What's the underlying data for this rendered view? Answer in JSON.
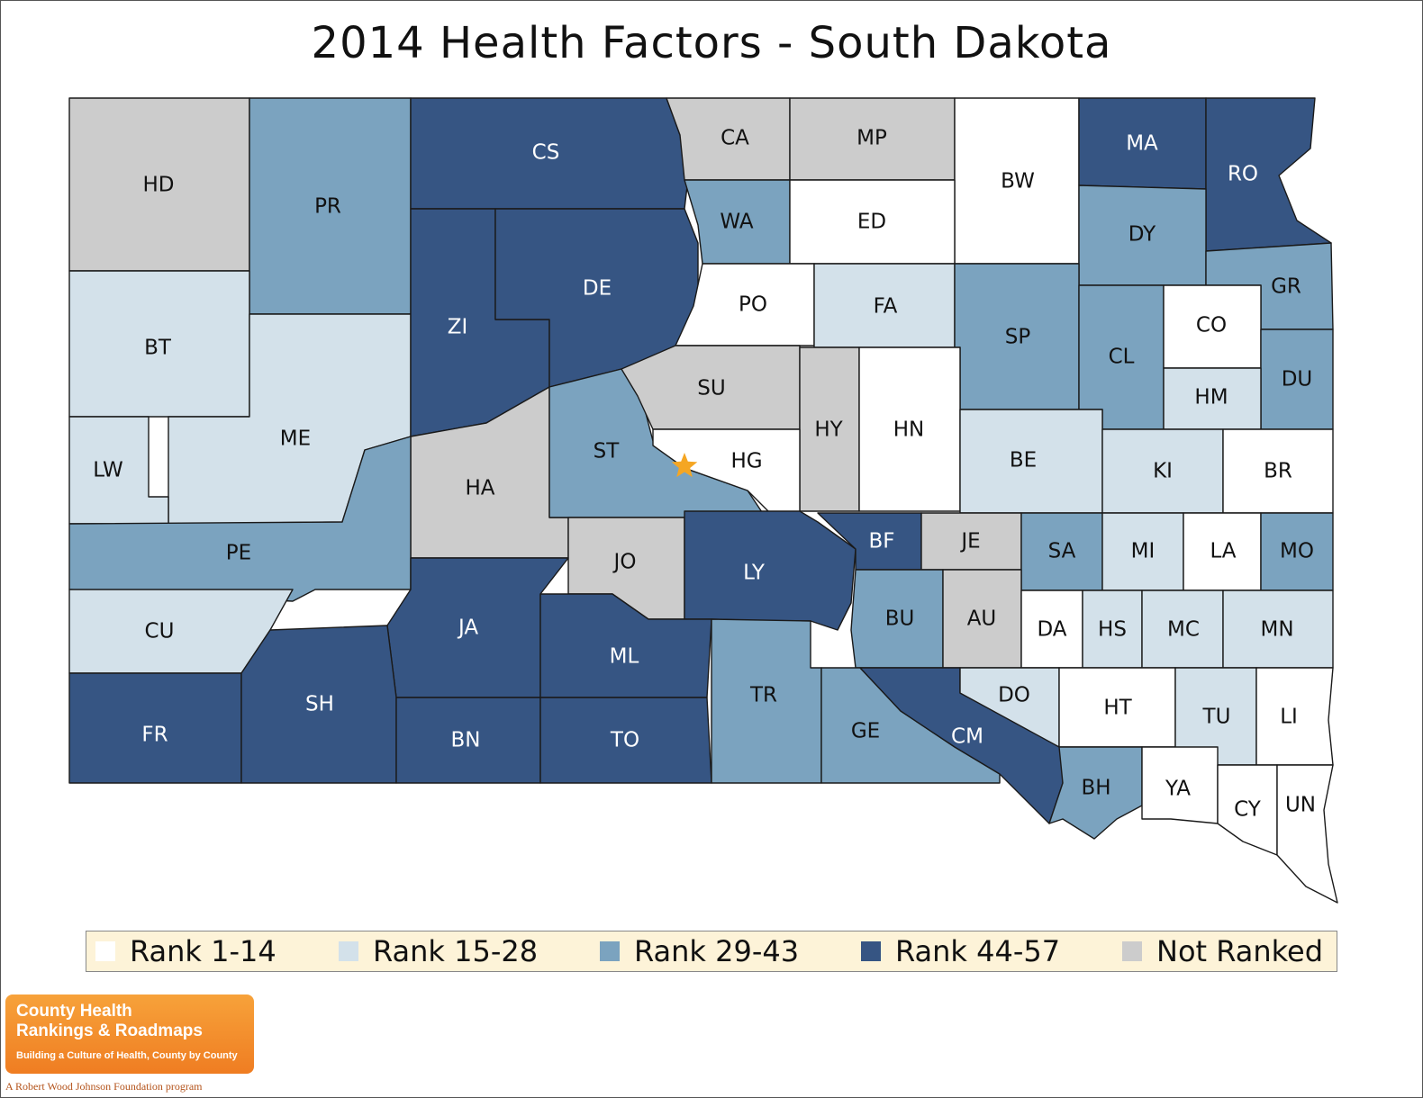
{
  "title": "2014 Health Factors - South Dakota",
  "colors": {
    "rank_1_14": "#ffffff",
    "rank_15_28": "#d3e1ea",
    "rank_29_43": "#7ba3bf",
    "rank_44_57": "#365583",
    "not_ranked": "#cccccc",
    "star": "#f5a623"
  },
  "legend": [
    {
      "label": "Rank 1-14",
      "key": "rank_1_14"
    },
    {
      "label": "Rank 15-28",
      "key": "rank_15_28"
    },
    {
      "label": "Rank 29-43",
      "key": "rank_29_43"
    },
    {
      "label": "Rank 44-57",
      "key": "rank_44_57"
    },
    {
      "label": "Not Ranked",
      "key": "not_ranked"
    }
  ],
  "counties": [
    {
      "code": "HD",
      "category": "not_ranked"
    },
    {
      "code": "PR",
      "category": "rank_29_43"
    },
    {
      "code": "CS",
      "category": "rank_44_57"
    },
    {
      "code": "CA",
      "category": "not_ranked"
    },
    {
      "code": "MP",
      "category": "not_ranked"
    },
    {
      "code": "BW",
      "category": "rank_1_14"
    },
    {
      "code": "MA",
      "category": "rank_44_57"
    },
    {
      "code": "RO",
      "category": "rank_44_57"
    },
    {
      "code": "BT",
      "category": "rank_15_28"
    },
    {
      "code": "ME",
      "category": "rank_15_28"
    },
    {
      "code": "ZI",
      "category": "rank_44_57"
    },
    {
      "code": "DE",
      "category": "rank_44_57"
    },
    {
      "code": "WA",
      "category": "rank_29_43"
    },
    {
      "code": "ED",
      "category": "rank_1_14"
    },
    {
      "code": "DY",
      "category": "rank_29_43"
    },
    {
      "code": "GR",
      "category": "rank_29_43"
    },
    {
      "code": "PO",
      "category": "rank_1_14"
    },
    {
      "code": "FA",
      "category": "rank_15_28"
    },
    {
      "code": "SP",
      "category": "rank_29_43"
    },
    {
      "code": "CL",
      "category": "rank_29_43"
    },
    {
      "code": "CO",
      "category": "rank_1_14"
    },
    {
      "code": "DU",
      "category": "rank_29_43"
    },
    {
      "code": "HM",
      "category": "rank_15_28"
    },
    {
      "code": "LW",
      "category": "rank_15_28"
    },
    {
      "code": "HA",
      "category": "not_ranked"
    },
    {
      "code": "ST",
      "category": "rank_29_43"
    },
    {
      "code": "SU",
      "category": "not_ranked"
    },
    {
      "code": "HY",
      "category": "not_ranked"
    },
    {
      "code": "HN",
      "category": "rank_1_14"
    },
    {
      "code": "HG",
      "category": "rank_1_14"
    },
    {
      "code": "BE",
      "category": "rank_15_28"
    },
    {
      "code": "KI",
      "category": "rank_15_28"
    },
    {
      "code": "BR",
      "category": "rank_1_14"
    },
    {
      "code": "PE",
      "category": "rank_29_43"
    },
    {
      "code": "JO",
      "category": "not_ranked"
    },
    {
      "code": "LY",
      "category": "rank_44_57"
    },
    {
      "code": "BF",
      "category": "rank_44_57"
    },
    {
      "code": "JE",
      "category": "not_ranked"
    },
    {
      "code": "SA",
      "category": "rank_29_43"
    },
    {
      "code": "MI",
      "category": "rank_15_28"
    },
    {
      "code": "LA",
      "category": "rank_1_14"
    },
    {
      "code": "MO",
      "category": "rank_29_43"
    },
    {
      "code": "CU",
      "category": "rank_15_28"
    },
    {
      "code": "JA",
      "category": "rank_44_57"
    },
    {
      "code": "ML",
      "category": "rank_44_57"
    },
    {
      "code": "BU",
      "category": "rank_29_43"
    },
    {
      "code": "AU",
      "category": "not_ranked"
    },
    {
      "code": "DA",
      "category": "rank_1_14"
    },
    {
      "code": "HS",
      "category": "rank_15_28"
    },
    {
      "code": "MC",
      "category": "rank_15_28"
    },
    {
      "code": "MN",
      "category": "rank_15_28"
    },
    {
      "code": "FR",
      "category": "rank_44_57"
    },
    {
      "code": "SH",
      "category": "rank_44_57"
    },
    {
      "code": "BN",
      "category": "rank_44_57"
    },
    {
      "code": "TO",
      "category": "rank_44_57"
    },
    {
      "code": "TR",
      "category": "rank_29_43"
    },
    {
      "code": "GE",
      "category": "rank_29_43"
    },
    {
      "code": "CM",
      "category": "rank_44_57"
    },
    {
      "code": "DO",
      "category": "rank_15_28"
    },
    {
      "code": "HT",
      "category": "rank_1_14"
    },
    {
      "code": "TU",
      "category": "rank_15_28"
    },
    {
      "code": "LI",
      "category": "rank_1_14"
    },
    {
      "code": "BH",
      "category": "rank_29_43"
    },
    {
      "code": "YA",
      "category": "rank_1_14"
    },
    {
      "code": "CY",
      "category": "rank_1_14"
    },
    {
      "code": "UN",
      "category": "rank_1_14"
    }
  ],
  "capital_marker": "star",
  "logo": {
    "line1": "County Health",
    "line2": "Rankings & Roadmaps",
    "tagline": "Building a Culture of Health, County by County",
    "footer": "A Robert Wood Johnson Foundation program"
  }
}
